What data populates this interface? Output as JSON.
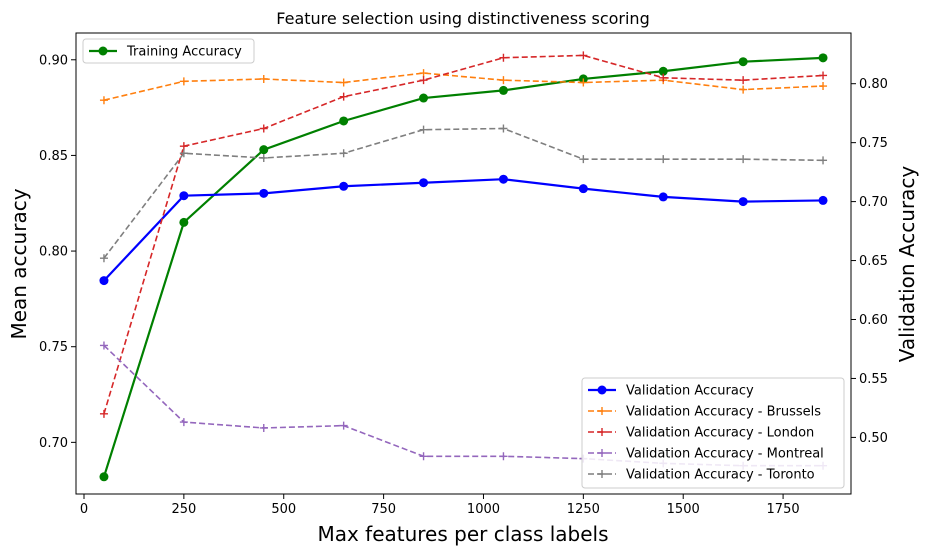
{
  "chart_data": {
    "type": "line",
    "title": "Feature selection using distinctiveness scoring",
    "xlabel": "Max features per class labels",
    "ylabel_left": "Mean accuracy",
    "ylabel_right": "Validation Accuracy",
    "xlim": [
      -20,
      1920
    ],
    "xticks": [
      0,
      250,
      500,
      750,
      1000,
      1250,
      1500,
      1750
    ],
    "ylim_left": [
      0.673,
      0.914
    ],
    "yticks_left": [
      0.7,
      0.75,
      0.8,
      0.85,
      0.9
    ],
    "ylim_right": [
      0.452,
      0.843
    ],
    "yticks_right": [
      0.5,
      0.55,
      0.6,
      0.65,
      0.7,
      0.75,
      0.8
    ],
    "grid": false,
    "x": [
      50,
      250,
      450,
      650,
      850,
      1050,
      1250,
      1450,
      1650,
      1850
    ],
    "left_series": [
      {
        "name": "Training Accuracy",
        "color": "#008000",
        "style": "solid",
        "marker": "circle",
        "values": [
          0.682,
          0.815,
          0.853,
          0.868,
          0.88,
          0.884,
          0.89,
          0.894,
          0.899,
          0.901
        ]
      }
    ],
    "right_series": [
      {
        "name": "Validation Accuracy",
        "color": "#0000ff",
        "style": "solid",
        "marker": "circle",
        "values": [
          0.633,
          0.705,
          0.707,
          0.713,
          0.716,
          0.719,
          0.711,
          0.704,
          0.7,
          0.701
        ]
      },
      {
        "name": "Validation Accuracy - Brussels",
        "color": "#ff7f0e",
        "style": "dashed",
        "marker": "plus",
        "values": [
          0.786,
          0.802,
          0.804,
          0.801,
          0.809,
          0.803,
          0.801,
          0.803,
          0.795,
          0.798
        ]
      },
      {
        "name": "Validation Accuracy - London",
        "color": "#d62728",
        "style": "dashed",
        "marker": "plus",
        "values": [
          0.52,
          0.747,
          0.762,
          0.789,
          0.803,
          0.822,
          0.824,
          0.805,
          0.803,
          0.807
        ]
      },
      {
        "name": "Validation Accuracy - Montreal",
        "color": "#9467bd",
        "style": "dashed",
        "marker": "plus",
        "values": [
          0.578,
          0.513,
          0.508,
          0.51,
          0.484,
          0.484,
          0.482,
          0.478,
          0.476,
          0.476
        ]
      },
      {
        "name": "Validation Accuracy - Toronto",
        "color": "#7f7f7f",
        "style": "dashed",
        "marker": "plus",
        "values": [
          0.652,
          0.741,
          0.737,
          0.741,
          0.761,
          0.762,
          0.736,
          0.736,
          0.736,
          0.735
        ]
      }
    ],
    "legend_left_position": "upper-left",
    "legend_right_position": "lower-right"
  }
}
